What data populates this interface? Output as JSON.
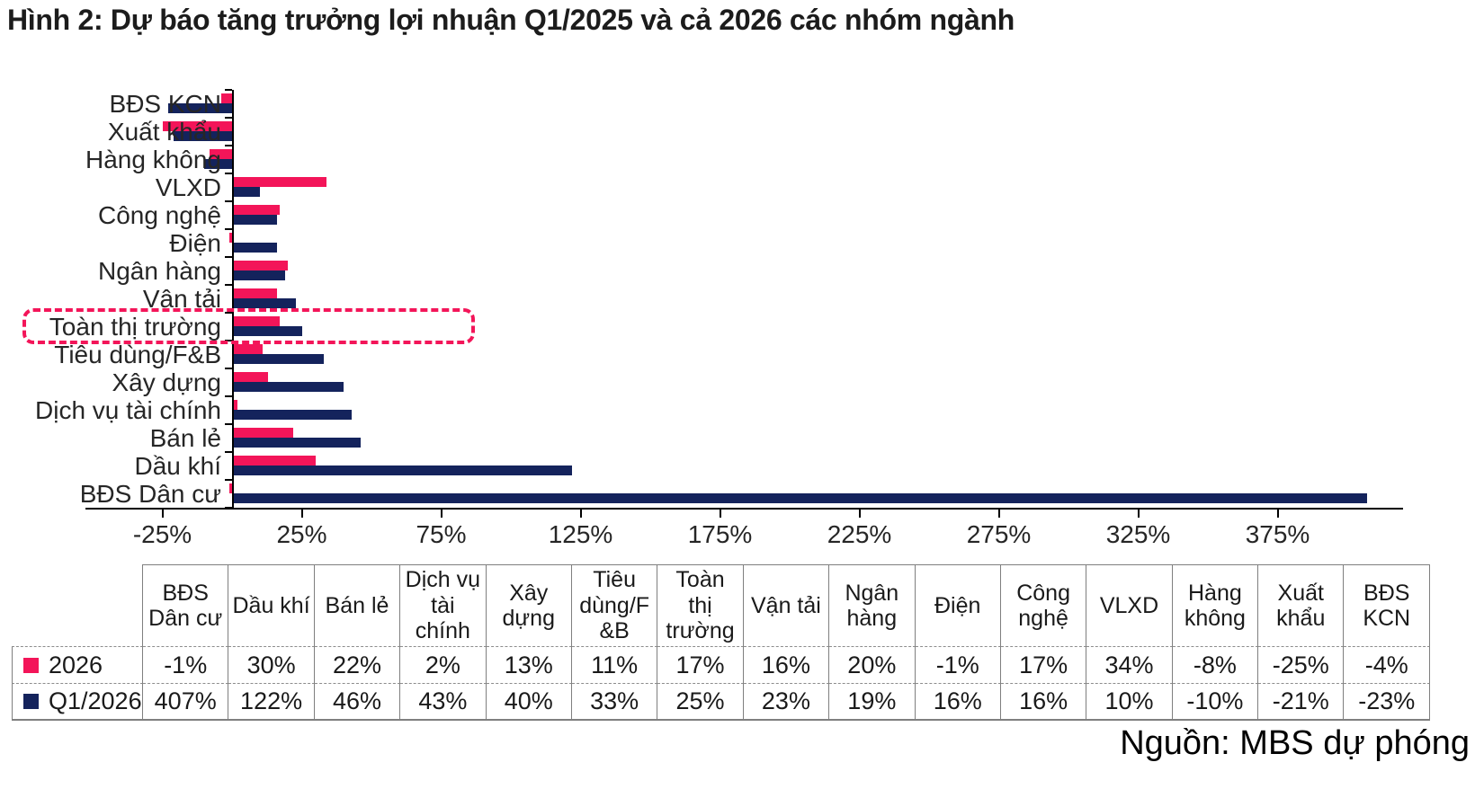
{
  "title": "Hình 2: Dự báo tăng trưởng lợi nhuận Q1/2025 và cả 2026 các nhóm ngành",
  "source": "Nguồn: MBS dự phóng",
  "colors": {
    "series_2026": "#f31559",
    "series_q1_2026": "#14235c",
    "highlight_border": "#f31559",
    "axis": "#000000",
    "table_border": "#7f7f7f"
  },
  "chart_data": {
    "type": "bar",
    "orientation": "horizontal",
    "unit": "%",
    "categories": [
      "BĐS KCN",
      "Xuất khẩu",
      "Hàng không",
      "VLXD",
      "Công nghệ",
      "Điện",
      "Ngân hàng",
      "Vận tải",
      "Toàn thị trường",
      "Tiêu dùng/F&B",
      "Xây dựng",
      "Dịch vụ tài chính",
      "Bán lẻ",
      "Dầu khí",
      "BĐS Dân cư"
    ],
    "series": [
      {
        "name": "2026",
        "color": "#f31559",
        "values": [
          -4,
          -25,
          -8,
          34,
          17,
          -1,
          20,
          16,
          17,
          11,
          13,
          2,
          22,
          30,
          -1
        ]
      },
      {
        "name": "Q1/2026",
        "color": "#14235c",
        "values": [
          -23,
          -21,
          -10,
          10,
          16,
          16,
          19,
          23,
          25,
          33,
          40,
          43,
          46,
          122,
          407
        ]
      }
    ],
    "x_ticks": [
      {
        "label": "-25%",
        "value": -25
      },
      {
        "label": "25%",
        "value": 25
      },
      {
        "label": "75%",
        "value": 75
      },
      {
        "label": "125%",
        "value": 125
      },
      {
        "label": "175%",
        "value": 175
      },
      {
        "label": "225%",
        "value": 225
      },
      {
        "label": "275%",
        "value": 275
      },
      {
        "label": "325%",
        "value": 325
      },
      {
        "label": "375%",
        "value": 375
      }
    ],
    "xlim": [
      -50,
      420
    ],
    "grid": false,
    "legend_position": "table-below",
    "highlighted_category": "Toàn thị trường"
  },
  "table": {
    "columns": [
      "BĐS Dân cư",
      "Dầu khí",
      "Bán lẻ",
      "Dịch vụ tài chính",
      "Xây dựng",
      "Tiêu dùng/F&B",
      "Toàn thị trường",
      "Vận tải",
      "Ngân hàng",
      "Điện",
      "Công nghệ",
      "VLXD",
      "Hàng không",
      "Xuất khẩu",
      "BĐS KCN"
    ],
    "rows": [
      {
        "label": "2026",
        "color": "#f31559",
        "values": [
          "-1%",
          "30%",
          "22%",
          "2%",
          "13%",
          "11%",
          "17%",
          "16%",
          "20%",
          "-1%",
          "17%",
          "34%",
          "-8%",
          "-25%",
          "-4%"
        ]
      },
      {
        "label": "Q1/2026",
        "color": "#14235c",
        "values": [
          "407%",
          "122%",
          "46%",
          "43%",
          "40%",
          "33%",
          "25%",
          "23%",
          "19%",
          "16%",
          "16%",
          "10%",
          "-10%",
          "-21%",
          "-23%"
        ]
      }
    ]
  }
}
